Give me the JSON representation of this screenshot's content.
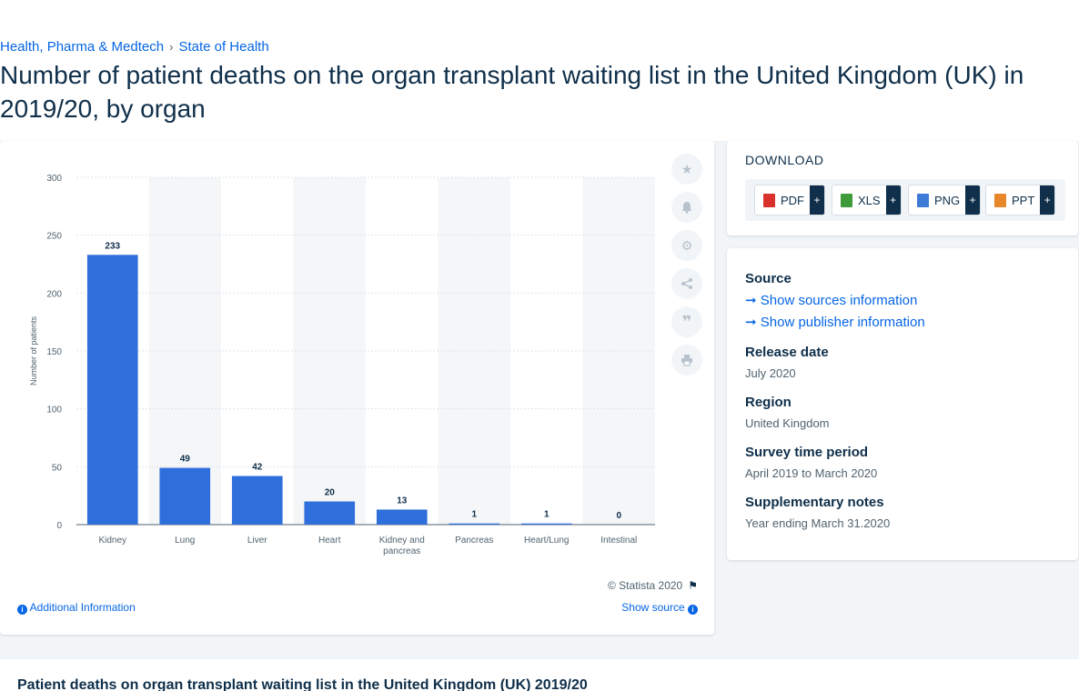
{
  "breadcrumb": {
    "items": [
      "Health, Pharma & Medtech",
      "State of Health"
    ],
    "separator": "›"
  },
  "title": "Number of patient deaths on the organ transplant waiting list in the United Kingdom (UK) in 2019/20, by organ",
  "chart_data": {
    "type": "bar",
    "title": "",
    "xlabel": "",
    "ylabel": "Number of patients",
    "categories": [
      "Kidney",
      "Lung",
      "Liver",
      "Heart",
      "Kidney and pancreas",
      "Pancreas",
      "Heart/Lung",
      "Intestinal"
    ],
    "category_lines": [
      [
        "Kidney"
      ],
      [
        "Lung"
      ],
      [
        "Liver"
      ],
      [
        "Heart"
      ],
      [
        "Kidney and",
        "pancreas"
      ],
      [
        "Pancreas"
      ],
      [
        "Heart/Lung"
      ],
      [
        "Intestinal"
      ]
    ],
    "values": [
      233,
      49,
      42,
      20,
      13,
      1,
      1,
      0
    ],
    "ylim": [
      0,
      300
    ],
    "yticks": [
      0,
      50,
      100,
      150,
      200,
      250,
      300
    ],
    "grid": true,
    "legend": "none",
    "bar_color": "#2f6fdb"
  },
  "chart_footer": {
    "copyright": "© Statista 2020",
    "additional_info": "Additional Information",
    "show_source": "Show source"
  },
  "download": {
    "title": "DOWNLOAD",
    "buttons": [
      {
        "label": "PDF",
        "color": "#d9302c"
      },
      {
        "label": "XLS",
        "color": "#3f9a3a"
      },
      {
        "label": "PNG",
        "color": "#3e7bd6"
      },
      {
        "label": "PPT",
        "color": "#e8862a"
      }
    ],
    "plus": "+"
  },
  "info": {
    "source_label": "Source",
    "show_sources": "Show sources information",
    "show_publisher": "Show publisher information",
    "release_label": "Release date",
    "release_value": "July 2020",
    "region_label": "Region",
    "region_value": "United Kingdom",
    "survey_label": "Survey time period",
    "survey_value": "April 2019 to March 2020",
    "notes_label": "Supplementary notes",
    "notes_value": "Year ending March 31.2020"
  },
  "bottom_title": "Patient deaths on organ transplant waiting list in the United Kingdom (UK) 2019/20",
  "icons": [
    "star-icon",
    "bell-icon",
    "gear-icon",
    "share-icon",
    "quote-icon",
    "print-icon",
    "flag-icon",
    "info-icon",
    "arrow-right-icon",
    "pdf-file-icon",
    "xls-file-icon",
    "png-file-icon",
    "ppt-file-icon"
  ]
}
